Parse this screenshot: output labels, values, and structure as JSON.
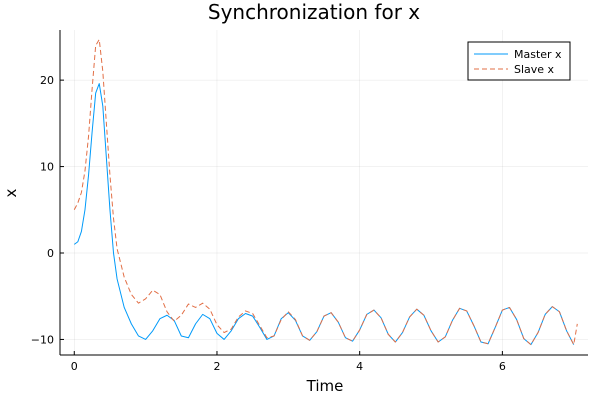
{
  "chart_data": {
    "type": "line",
    "title": "Synchronization for x",
    "xlabel": "Time",
    "ylabel": "x",
    "xlim": [
      -0.2,
      7.2
    ],
    "ylim": [
      -11.8,
      25.8
    ],
    "xticks": [
      0,
      2,
      4,
      6
    ],
    "yticks": [
      -10,
      0,
      10,
      20
    ],
    "grid": true,
    "legend_position": "top-right",
    "series": [
      {
        "name": "Master x",
        "color": "#009af9",
        "dash": "solid",
        "x": [
          0,
          0.05,
          0.1,
          0.15,
          0.2,
          0.25,
          0.3,
          0.35,
          0.4,
          0.45,
          0.5,
          0.55,
          0.6,
          0.7,
          0.8,
          0.9,
          1.0,
          1.1,
          1.2,
          1.3,
          1.4,
          1.5,
          1.6,
          1.7,
          1.8,
          1.9,
          2.0,
          2.1,
          2.2,
          2.3,
          2.4,
          2.5,
          2.6,
          2.7,
          2.8,
          2.9,
          3.0,
          3.1,
          3.2,
          3.3,
          3.4,
          3.5,
          3.6,
          3.7,
          3.8,
          3.9,
          4.0,
          4.1,
          4.2,
          4.3,
          4.4,
          4.5,
          4.6,
          4.7,
          4.8,
          4.9,
          5.0,
          5.1,
          5.2,
          5.3,
          5.4,
          5.5,
          5.6,
          5.7,
          5.8,
          5.9,
          6.0,
          6.1,
          6.2,
          6.3,
          6.4,
          6.5,
          6.6,
          6.7,
          6.8,
          6.9,
          7.0
        ],
        "values": [
          1,
          1.3,
          2.5,
          5,
          9,
          14,
          18.5,
          19.6,
          17,
          11,
          5,
          0,
          -3,
          -6.3,
          -8.2,
          -9.6,
          -10,
          -9,
          -7.6,
          -7.2,
          -7.8,
          -9.6,
          -9.8,
          -8.2,
          -7.1,
          -7.6,
          -9.3,
          -10,
          -9,
          -7.6,
          -7,
          -7.3,
          -8.6,
          -10,
          -9.6,
          -7.6,
          -6.9,
          -7.8,
          -9.6,
          -10.1,
          -9.1,
          -7.3,
          -6.9,
          -8,
          -9.8,
          -10.2,
          -8.9,
          -7.1,
          -6.6,
          -7.5,
          -9.4,
          -10.3,
          -9.2,
          -7.4,
          -6.5,
          -7.2,
          -9,
          -10.3,
          -9.7,
          -7.8,
          -6.4,
          -6.7,
          -8.4,
          -10.3,
          -10.5,
          -8.6,
          -6.6,
          -6.3,
          -7.7,
          -9.9,
          -10.6,
          -9.2,
          -7.1,
          -6.2,
          -6.8,
          -9,
          -10.6
        ]
      },
      {
        "name": "Slave x",
        "color": "#e26f46",
        "dash": "dashed",
        "x": [
          0,
          0.05,
          0.1,
          0.15,
          0.2,
          0.25,
          0.3,
          0.35,
          0.4,
          0.45,
          0.5,
          0.55,
          0.6,
          0.7,
          0.8,
          0.9,
          1.0,
          1.1,
          1.2,
          1.3,
          1.4,
          1.5,
          1.6,
          1.7,
          1.8,
          1.9,
          2.0,
          2.1,
          2.2,
          2.3,
          2.4,
          2.5,
          2.6,
          2.7,
          2.8,
          2.9,
          3.0,
          3.1,
          3.2,
          3.3,
          3.4,
          3.5,
          3.6,
          3.7,
          3.8,
          3.9,
          4.0,
          4.1,
          4.2,
          4.3,
          4.4,
          4.5,
          4.6,
          4.7,
          4.8,
          4.9,
          5.0,
          5.1,
          5.2,
          5.3,
          5.4,
          5.5,
          5.6,
          5.7,
          5.8,
          5.9,
          6.0,
          6.1,
          6.2,
          6.3,
          6.4,
          6.5,
          6.6,
          6.7,
          6.8,
          6.9,
          7.0,
          7.05
        ],
        "values": [
          5,
          5.8,
          7,
          9.5,
          13.5,
          19,
          24,
          24.7,
          21,
          15,
          9,
          4,
          0.5,
          -2.8,
          -4.8,
          -5.8,
          -5.3,
          -4.3,
          -4.8,
          -6.8,
          -7.9,
          -7.2,
          -5.9,
          -6.3,
          -5.8,
          -6.5,
          -8.3,
          -9.2,
          -8.8,
          -7.4,
          -6.7,
          -7,
          -8.4,
          -9.8,
          -9.6,
          -7.7,
          -6.8,
          -7.7,
          -9.6,
          -10.1,
          -9.1,
          -7.3,
          -6.9,
          -8,
          -9.8,
          -10.2,
          -8.9,
          -7.1,
          -6.6,
          -7.5,
          -9.4,
          -10.3,
          -9.2,
          -7.4,
          -6.5,
          -7.2,
          -9,
          -10.3,
          -9.7,
          -7.8,
          -6.4,
          -6.7,
          -8.4,
          -10.3,
          -10.5,
          -8.6,
          -6.6,
          -6.3,
          -7.7,
          -9.9,
          -10.6,
          -9.2,
          -7.1,
          -6.2,
          -6.8,
          -9,
          -10.6,
          -8.2
        ]
      }
    ]
  }
}
